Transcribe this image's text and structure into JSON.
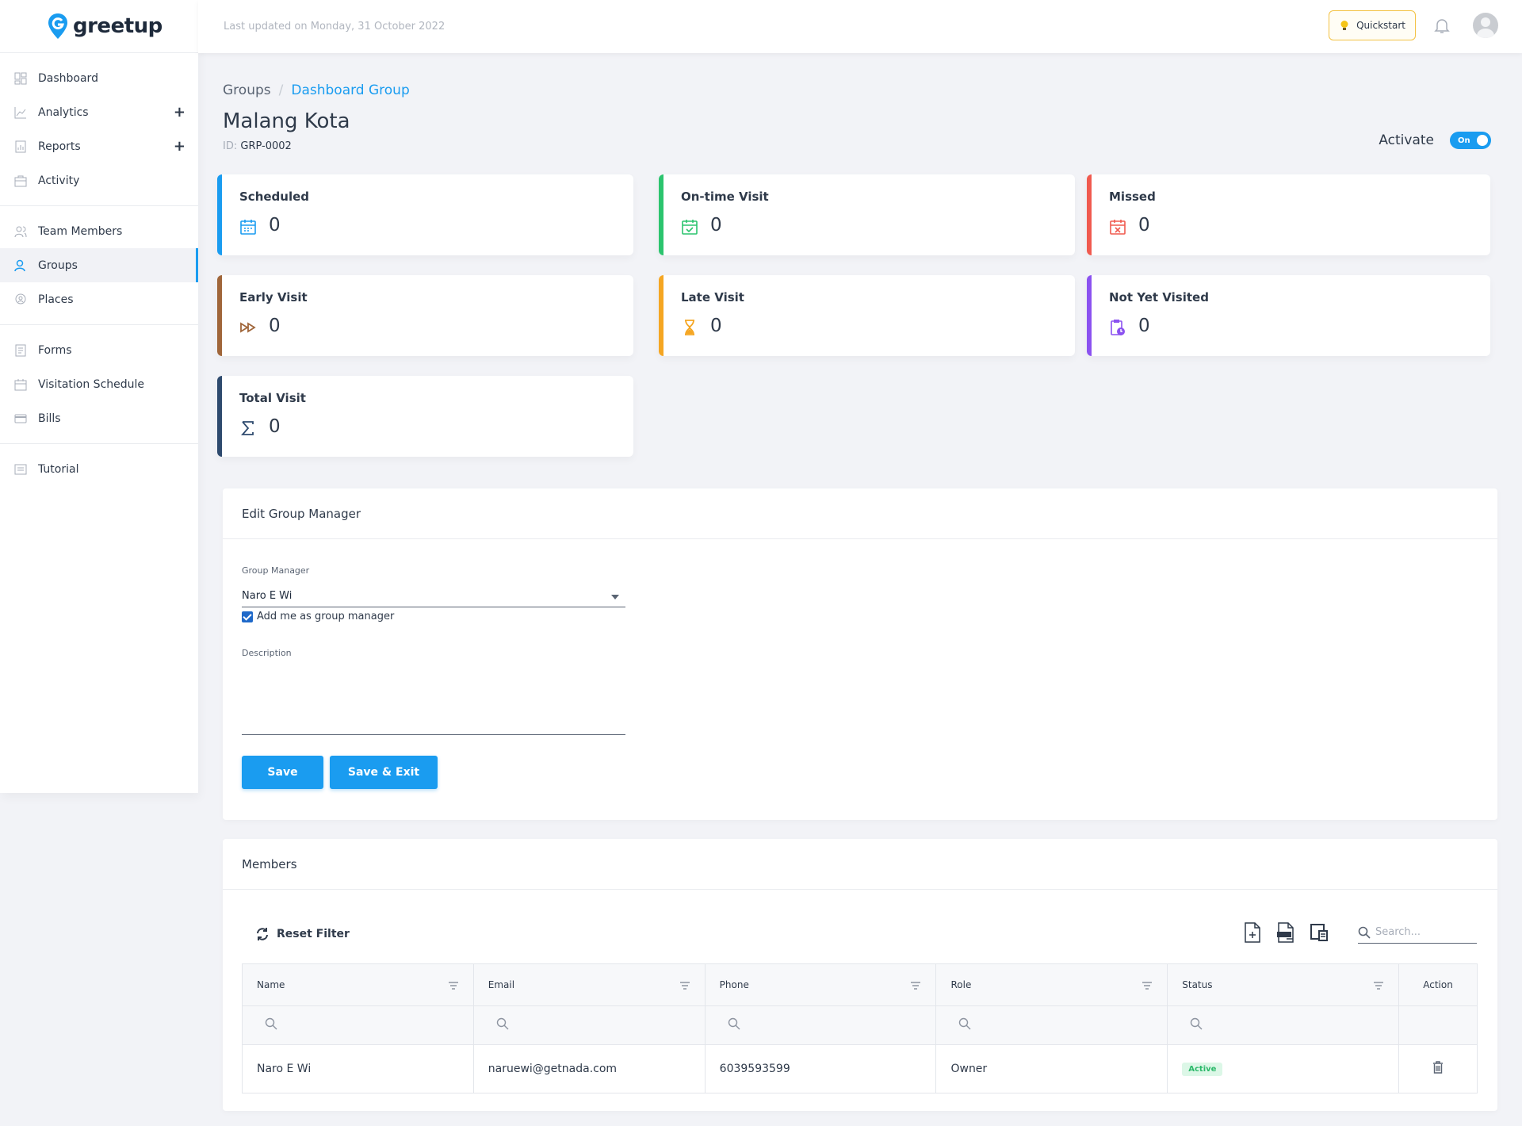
{
  "brand": {
    "name": "greetup"
  },
  "topbar": {
    "last_updated": "Last updated on Monday, 31 October 2022",
    "quickstart_label": "Quickstart"
  },
  "sidebar": {
    "groups": [
      [
        {
          "label": "Dashboard",
          "icon": "dashboard-icon"
        },
        {
          "label": "Analytics",
          "icon": "analytics-icon",
          "expandable": true
        },
        {
          "label": "Reports",
          "icon": "reports-icon",
          "expandable": true
        },
        {
          "label": "Activity",
          "icon": "activity-icon"
        }
      ],
      [
        {
          "label": "Team Members",
          "icon": "team-members-icon"
        },
        {
          "label": "Groups",
          "icon": "groups-icon",
          "active": true
        },
        {
          "label": "Places",
          "icon": "places-icon"
        }
      ],
      [
        {
          "label": "Forms",
          "icon": "forms-icon"
        },
        {
          "label": "Visitation Schedule",
          "icon": "calendar-icon"
        },
        {
          "label": "Bills",
          "icon": "bills-icon"
        }
      ],
      [
        {
          "label": "Tutorial",
          "icon": "tutorial-icon"
        }
      ]
    ],
    "expand_symbol": "+"
  },
  "breadcrumb": {
    "parent": "Groups",
    "separator": "/",
    "current": "Dashboard Group"
  },
  "page": {
    "title": "Malang Kota",
    "id_label": "ID:",
    "id_value": "GRP-0002"
  },
  "activate": {
    "label": "Activate",
    "toggle_text": "On",
    "enabled": true
  },
  "stats": [
    {
      "title": "Scheduled",
      "value": "0",
      "color": "#1a9cf0",
      "icon": "calendar-icon"
    },
    {
      "title": "On-time Visit",
      "value": "0",
      "color": "#2cc46e",
      "icon": "calendar-check-icon"
    },
    {
      "title": "Missed",
      "value": "0",
      "color": "#f05a4f",
      "icon": "calendar-x-icon"
    },
    {
      "title": "Early Visit",
      "value": "0",
      "color": "#a0663a",
      "icon": "fast-forward-icon"
    },
    {
      "title": "Late Visit",
      "value": "0",
      "color": "#f5a623",
      "icon": "hourglass-icon"
    },
    {
      "title": "Not Yet Visited",
      "value": "0",
      "color": "#8b52f0",
      "icon": "clipboard-clock-icon"
    },
    {
      "title": "Total Visit",
      "value": "0",
      "color": "#2e4a6e",
      "icon": "sigma-icon"
    }
  ],
  "edit_manager": {
    "heading": "Edit Group Manager",
    "manager_label": "Group Manager",
    "manager_value": "Naro E Wi",
    "checkbox_label": "Add me as group manager",
    "checkbox_checked": true,
    "description_label": "Description",
    "save_label": "Save",
    "save_exit_label": "Save & Exit"
  },
  "members": {
    "heading": "Members",
    "reset_label": "Reset Filter",
    "search_placeholder": "Search...",
    "columns": [
      "Name",
      "Email",
      "Phone",
      "Role",
      "Status",
      "Action"
    ],
    "rows": [
      {
        "name": "Naro E Wi",
        "email": "naruewi@getnada.com",
        "phone": "6039593599",
        "role": "Owner",
        "status": "Active"
      }
    ]
  },
  "colors": {
    "accent": "#1a9cf0",
    "active_badge": "#2cb96a",
    "quickstart_border": "#f3c244"
  }
}
